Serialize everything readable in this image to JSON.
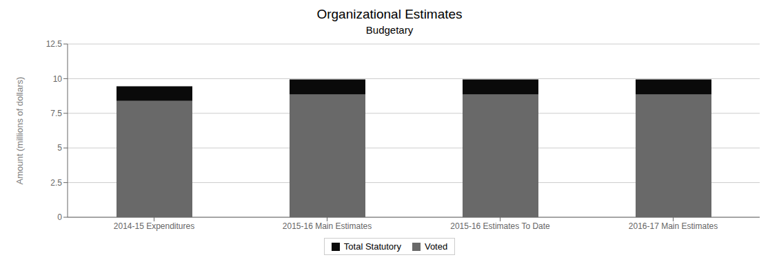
{
  "chart_data": {
    "type": "bar",
    "title": "Organizational Estimates",
    "subtitle": "Budgetary",
    "y_label": "Amount (millions of dollars)",
    "categories": [
      "2014-15 Expenditures",
      "2015-16 Main Estimates",
      "2015-16 Estimates To Date",
      "2016-17 Main Estimates"
    ],
    "series": [
      {
        "name": "Voted",
        "color": "#696969",
        "values": [
          8.4,
          8.85,
          8.85,
          8.85
        ]
      },
      {
        "name": "Total Statutory",
        "color": "#0a0a0a",
        "values": [
          1.05,
          1.1,
          1.1,
          1.1
        ]
      }
    ],
    "stacked": true,
    "ylim": [
      0,
      12.5
    ],
    "yticks": [
      0,
      2.5,
      5.0,
      7.5,
      10.0,
      12.5
    ],
    "grid": true,
    "legend": "bottom"
  }
}
